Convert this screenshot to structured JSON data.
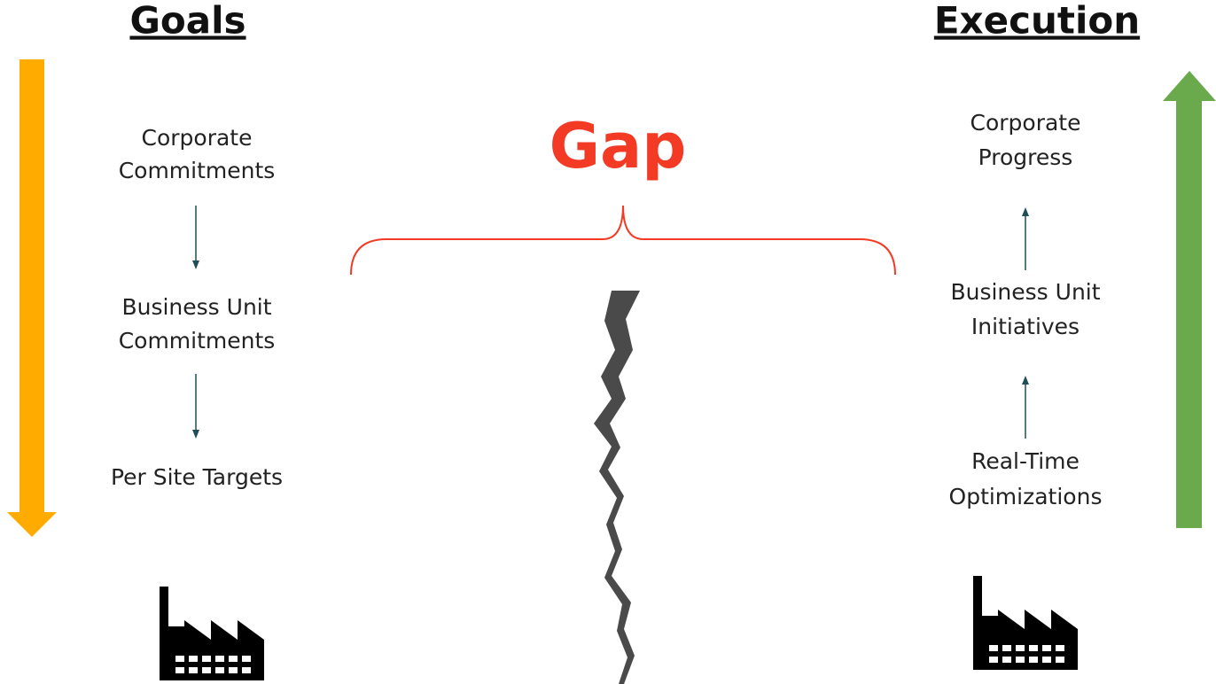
{
  "goals": {
    "title": "Goals",
    "steps": [
      [
        "Corporate",
        "Commitments"
      ],
      [
        "Business Unit",
        "Commitments"
      ],
      [
        "Per Site Targets"
      ]
    ]
  },
  "gap": {
    "label": "Gap"
  },
  "execution": {
    "title": "Execution",
    "steps": [
      [
        "Corporate",
        "Progress"
      ],
      [
        "Business Unit",
        "Initiatives"
      ],
      [
        "Real-Time",
        "Optimizations"
      ]
    ]
  }
}
